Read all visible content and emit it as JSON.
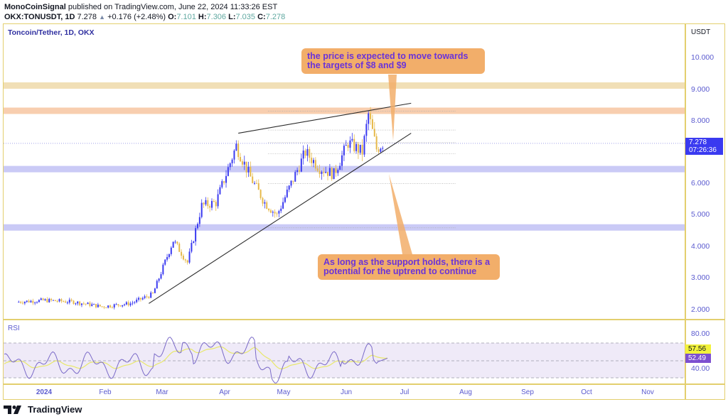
{
  "header": {
    "author": "MonoCoinSignal",
    "published_text": "published on TradingView.com, June 22, 2024 11:33:26 EST",
    "symbol": "OKX:TONUSDT, 1D",
    "last": "7.278",
    "change": "+0.176 (+2.48%)",
    "open_label": "O:",
    "open": "7.101",
    "high_label": "H:",
    "high": "7.306",
    "low_label": "L:",
    "low": "7.035",
    "close_label": "C:",
    "close": "7.278"
  },
  "chart": {
    "title": "Toncoin/Tether, 1D, OKX",
    "currency": "USDT",
    "price_ticks": [
      "10.000",
      "9.000",
      "8.000",
      "6.000",
      "5.000",
      "4.000",
      "3.000",
      "2.000"
    ],
    "last_price_tag": {
      "price": "7.278",
      "countdown": "07:26:36"
    },
    "rsi_label": "RSI",
    "rsi_ticks": [
      "80.00",
      "40.00"
    ],
    "rsi_ma_tag": "57.56",
    "rsi_tag": "52.49",
    "months": [
      "2024",
      "Feb",
      "Mar",
      "Apr",
      "May",
      "Jun",
      "Jul",
      "Aug",
      "Sep",
      "Oct",
      "Nov"
    ],
    "callout_top": "the price is expected to move towards the targets of $8 and $9",
    "callout_bottom": "As long as the support holds, there is a potential for the uptrend to continue",
    "brand": "TradingView"
  },
  "colors": {
    "up": "#3a3af0",
    "down": "#e6b94a",
    "zone_resistance_9": "#f0dcae",
    "zone_resistance_8": "#f7c9a6",
    "zone_support_6_5": "#c4c4f5",
    "zone_support_4_6": "#c4c4f5",
    "callout": "#f2ae6a",
    "callout_text": "#6a33d9",
    "rsi_line": "#7a6ac8",
    "rsi_ma": "#e8e86a",
    "frame": "#e3cf6e"
  },
  "chart_data": {
    "type": "candlestick",
    "title": "Toncoin/Tether, 1D, OKX",
    "symbol": "OKX:TONUSDT",
    "ylabel": "USDT",
    "ylim": [
      1.7,
      10.6
    ],
    "y_ticks": [
      2,
      3,
      4,
      5,
      6,
      8,
      9,
      10
    ],
    "x_ticks": [
      "2024",
      "Feb",
      "Mar",
      "Apr",
      "May",
      "Jun",
      "Jul",
      "Aug",
      "Sep",
      "Oct",
      "Nov"
    ],
    "last_price": 7.278,
    "ohlc_latest": {
      "open": 7.101,
      "high": 7.306,
      "low": 7.035,
      "close": 7.278
    },
    "horizontal_zones": [
      {
        "label": "resistance ~9.1",
        "price": 9.1,
        "color": "#f0dcae"
      },
      {
        "label": "resistance ~8.3",
        "price": 8.3,
        "color": "#f7c9a6"
      },
      {
        "label": "support ~6.45",
        "price": 6.45,
        "color": "#c4c4f5"
      },
      {
        "label": "support ~4.6",
        "price": 4.6,
        "color": "#c4c4f5"
      }
    ],
    "trendlines": [
      {
        "name": "upper wedge",
        "from": [
          "2024-04-11",
          7.6
        ],
        "to": [
          "2024-07-05",
          8.55
        ]
      },
      {
        "name": "rising support",
        "from": [
          "2024-02-27",
          2.2
        ],
        "to": [
          "2024-07-05",
          7.6
        ]
      }
    ],
    "closes_weekly_approx": [
      {
        "x": "2023-12-25",
        "close": 2.25
      },
      {
        "x": "2024-01-08",
        "close": 2.3
      },
      {
        "x": "2024-01-22",
        "close": 2.25
      },
      {
        "x": "2024-02-05",
        "close": 2.1
      },
      {
        "x": "2024-02-19",
        "close": 2.2
      },
      {
        "x": "2024-03-01",
        "close": 2.5
      },
      {
        "x": "2024-03-11",
        "close": 4.2
      },
      {
        "x": "2024-03-18",
        "close": 3.5
      },
      {
        "x": "2024-03-25",
        "close": 5.3
      },
      {
        "x": "2024-04-01",
        "close": 5.4
      },
      {
        "x": "2024-04-11",
        "close": 7.2
      },
      {
        "x": "2024-04-18",
        "close": 6.2
      },
      {
        "x": "2024-04-25",
        "close": 5.4
      },
      {
        "x": "2024-05-01",
        "close": 5.0
      },
      {
        "x": "2024-05-08",
        "close": 6.0
      },
      {
        "x": "2024-05-15",
        "close": 7.0
      },
      {
        "x": "2024-05-22",
        "close": 6.5
      },
      {
        "x": "2024-05-29",
        "close": 6.3
      },
      {
        "x": "2024-06-05",
        "close": 7.3
      },
      {
        "x": "2024-06-12",
        "close": 7.0
      },
      {
        "x": "2024-06-15",
        "close": 8.2
      },
      {
        "x": "2024-06-19",
        "close": 7.1
      },
      {
        "x": "2024-06-22",
        "close": 7.278
      }
    ],
    "rsi": {
      "label": "RSI",
      "ylim": [
        20,
        90
      ],
      "bands": [
        70,
        50,
        30
      ],
      "last_rsi": 52.49,
      "last_rsi_ma": 57.56
    }
  }
}
